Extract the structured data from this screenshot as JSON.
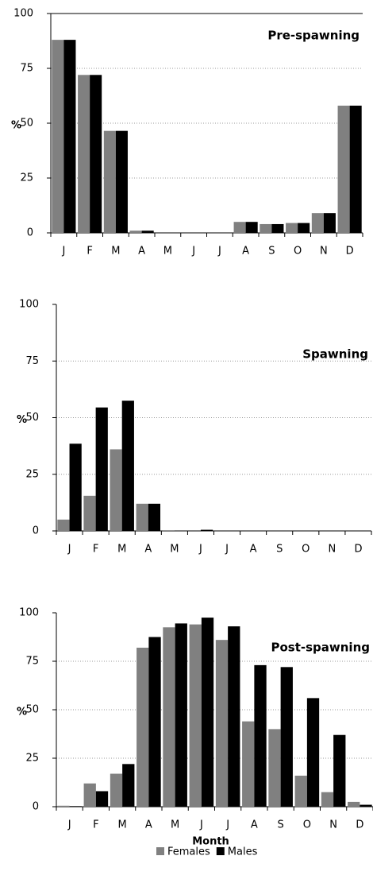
{
  "chart_data": [
    {
      "type": "bar",
      "title": "Pre-spawning",
      "ylabel": "%",
      "categories": [
        "J",
        "F",
        "M",
        "A",
        "M",
        "J",
        "J",
        "A",
        "S",
        "O",
        "N",
        "D"
      ],
      "series": [
        {
          "color": "#808080",
          "values": [
            88,
            72,
            46.5,
            1,
            0,
            0,
            0,
            5,
            4,
            4.5,
            9,
            58
          ]
        },
        {
          "color": "#000000",
          "values": [
            88,
            72,
            46.5,
            1,
            0,
            0,
            0,
            5,
            4,
            4.5,
            9,
            58
          ]
        }
      ],
      "ylim": [
        0,
        100
      ],
      "yticks": [
        0,
        25,
        50,
        75,
        100
      ],
      "grid": true
    },
    {
      "type": "bar",
      "title": "Spawning",
      "ylabel": "%",
      "categories": [
        "J",
        "F",
        "M",
        "A",
        "M",
        "J",
        "J",
        "A",
        "S",
        "O",
        "N",
        "D"
      ],
      "series": [
        {
          "color": "#808080",
          "values": [
            5,
            15.5,
            36,
            12,
            0.3,
            0,
            0,
            0,
            0,
            0,
            0,
            0
          ]
        },
        {
          "color": "#000000",
          "values": [
            38.5,
            54.5,
            57.5,
            12,
            0,
            0.5,
            0,
            0,
            0,
            0,
            0,
            0
          ]
        }
      ],
      "ylim": [
        0,
        100
      ],
      "yticks": [
        0,
        25,
        50,
        75,
        100
      ],
      "grid": true
    },
    {
      "type": "bar",
      "title": "Post-spawning",
      "ylabel": "%",
      "xlabel": "Month",
      "categories": [
        "J",
        "F",
        "M",
        "A",
        "M",
        "J",
        "J",
        "A",
        "S",
        "O",
        "N",
        "D"
      ],
      "series": [
        {
          "name": "Females",
          "color": "#808080",
          "values": [
            0.5,
            12,
            17,
            82,
            92.5,
            94,
            86,
            44,
            40,
            16,
            7.5,
            2.5
          ]
        },
        {
          "name": "Males",
          "color": "#000000",
          "values": [
            0.3,
            8,
            22,
            87.5,
            94.5,
            97.5,
            93,
            73,
            72,
            56,
            37,
            1
          ]
        }
      ],
      "ylim": [
        0,
        100
      ],
      "yticks": [
        0,
        25,
        50,
        75,
        100
      ],
      "grid": true,
      "legend": "bottom"
    }
  ]
}
